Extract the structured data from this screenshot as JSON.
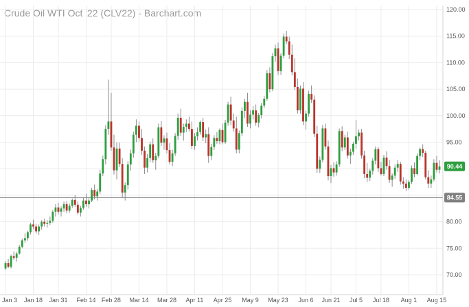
{
  "chart_data": {
    "type": "candlestick",
    "title": "Crude Oil WTI Oct '22 (CLV22) - Barchart.com",
    "y_axis_side": "right",
    "ylim": [
      70,
      120
    ],
    "yticks": [
      "70.00",
      "75.00",
      "80.00",
      "85.00",
      "90.00",
      "95.00",
      "100.00",
      "105.00",
      "110.00",
      "115.00",
      "120.00"
    ],
    "xticks": [
      {
        "label": "Jan 3",
        "index": 0
      },
      {
        "label": "Jan 18",
        "index": 10
      },
      {
        "label": "Jan 31",
        "index": 19
      },
      {
        "label": "Feb 14",
        "index": 29
      },
      {
        "label": "Feb 28",
        "index": 38
      },
      {
        "label": "Mar 14",
        "index": 48
      },
      {
        "label": "Mar 28",
        "index": 58
      },
      {
        "label": "Apr 11",
        "index": 68
      },
      {
        "label": "Apr 25",
        "index": 78
      },
      {
        "label": "May 9",
        "index": 88
      },
      {
        "label": "May 23",
        "index": 98
      },
      {
        "label": "Jun 6",
        "index": 108
      },
      {
        "label": "Jun 21",
        "index": 117
      },
      {
        "label": "Jul 5",
        "index": 126
      },
      {
        "label": "Jul 18",
        "index": 135
      },
      {
        "label": "Aug 1",
        "index": 145
      },
      {
        "label": "Aug 15",
        "index": 155
      }
    ],
    "last_price": {
      "label": "90.44",
      "value": 90.44,
      "color": "#2e9e3f"
    },
    "reference_line": {
      "label": "84.55",
      "value": 84.55,
      "color": "#808080"
    },
    "up_color": "#2e9e3f",
    "down_color": "#b8352b",
    "wick_color": "#8a8a8a",
    "ohlc": [
      [
        71.2,
        72.6,
        70.9,
        72.2
      ],
      [
        72.2,
        73.0,
        71.3,
        71.5
      ],
      [
        71.5,
        73.8,
        71.2,
        73.5
      ],
      [
        73.5,
        74.4,
        72.8,
        73.2
      ],
      [
        73.2,
        74.3,
        72.5,
        74.0
      ],
      [
        74.0,
        75.6,
        73.8,
        75.3
      ],
      [
        75.3,
        76.8,
        75.0,
        76.5
      ],
      [
        76.5,
        77.8,
        76.0,
        76.9
      ],
      [
        76.9,
        78.3,
        76.4,
        78.0
      ],
      [
        78.0,
        79.8,
        77.6,
        79.5
      ],
      [
        79.5,
        80.4,
        78.6,
        79.1
      ],
      [
        79.1,
        79.6,
        77.8,
        78.2
      ],
      [
        78.2,
        79.5,
        77.5,
        79.1
      ],
      [
        79.1,
        80.3,
        78.5,
        80.0
      ],
      [
        80.0,
        80.6,
        79.1,
        79.6
      ],
      [
        79.6,
        80.3,
        78.9,
        79.8
      ],
      [
        79.8,
        81.0,
        79.4,
        80.2
      ],
      [
        80.2,
        82.2,
        79.8,
        81.9
      ],
      [
        81.9,
        83.3,
        81.0,
        82.7
      ],
      [
        82.7,
        83.6,
        81.4,
        81.9
      ],
      [
        81.9,
        82.9,
        81.0,
        82.5
      ],
      [
        82.5,
        83.8,
        81.9,
        83.3
      ],
      [
        83.3,
        83.9,
        81.6,
        82.1
      ],
      [
        82.1,
        83.4,
        81.7,
        83.0
      ],
      [
        83.0,
        84.4,
        82.6,
        84.1
      ],
      [
        84.1,
        85.0,
        82.8,
        83.2
      ],
      [
        83.2,
        83.8,
        81.3,
        81.7
      ],
      [
        81.7,
        83.0,
        81.0,
        82.6
      ],
      [
        82.6,
        84.6,
        82.3,
        84.0
      ],
      [
        84.0,
        85.3,
        82.8,
        83.3
      ],
      [
        83.3,
        84.5,
        82.5,
        84.0
      ],
      [
        84.0,
        86.4,
        83.7,
        86.0
      ],
      [
        86.0,
        87.0,
        84.2,
        84.8
      ],
      [
        84.8,
        86.2,
        84.0,
        85.7
      ],
      [
        85.7,
        89.8,
        85.2,
        89.1
      ],
      [
        89.1,
        92.5,
        88.6,
        91.8
      ],
      [
        91.8,
        98.2,
        90.8,
        97.5
      ],
      [
        97.5,
        106.8,
        96.4,
        98.9
      ],
      [
        98.9,
        104.3,
        93.4,
        94.0
      ],
      [
        94.0,
        96.4,
        88.9,
        89.7
      ],
      [
        89.7,
        95.0,
        88.0,
        93.8
      ],
      [
        93.8,
        94.9,
        90.3,
        90.9
      ],
      [
        90.9,
        92.0,
        84.5,
        85.5
      ],
      [
        85.5,
        87.4,
        84.0,
        86.9
      ],
      [
        86.9,
        91.4,
        86.1,
        90.8
      ],
      [
        90.8,
        93.6,
        89.6,
        92.9
      ],
      [
        92.9,
        97.0,
        92.1,
        96.4
      ],
      [
        96.4,
        99.3,
        95.0,
        98.1
      ],
      [
        98.1,
        98.9,
        95.1,
        95.8
      ],
      [
        95.8,
        97.5,
        92.6,
        93.4
      ],
      [
        93.4,
        94.2,
        89.0,
        90.2
      ],
      [
        90.2,
        92.8,
        89.3,
        92.0
      ],
      [
        92.0,
        95.1,
        91.2,
        94.6
      ],
      [
        94.6,
        95.7,
        91.1,
        91.6
      ],
      [
        91.6,
        93.0,
        89.8,
        92.4
      ],
      [
        92.4,
        98.5,
        92.0,
        97.8
      ],
      [
        97.8,
        99.0,
        94.3,
        94.9
      ],
      [
        94.9,
        96.3,
        93.6,
        95.7
      ],
      [
        95.7,
        96.8,
        92.9,
        93.5
      ],
      [
        93.5,
        94.8,
        90.8,
        91.3
      ],
      [
        91.3,
        93.6,
        90.5,
        92.9
      ],
      [
        92.9,
        96.7,
        92.4,
        96.2
      ],
      [
        96.2,
        100.4,
        95.4,
        99.6
      ],
      [
        99.6,
        101.3,
        96.2,
        96.8
      ],
      [
        96.8,
        98.5,
        95.3,
        97.9
      ],
      [
        97.9,
        99.3,
        96.9,
        98.5
      ],
      [
        98.5,
        99.8,
        97.0,
        97.5
      ],
      [
        97.5,
        98.9,
        93.7,
        94.3
      ],
      [
        94.3,
        96.7,
        93.6,
        96.1
      ],
      [
        96.1,
        97.8,
        95.3,
        96.9
      ],
      [
        96.9,
        99.1,
        96.4,
        98.8
      ],
      [
        98.8,
        99.6,
        95.2,
        95.9
      ],
      [
        95.9,
        97.4,
        94.8,
        96.5
      ],
      [
        96.5,
        97.8,
        91.1,
        92.4
      ],
      [
        92.4,
        94.7,
        91.6,
        94.1
      ],
      [
        94.1,
        96.3,
        93.5,
        95.8
      ],
      [
        95.8,
        96.9,
        94.7,
        95.2
      ],
      [
        95.2,
        97.6,
        94.6,
        97.3
      ],
      [
        97.3,
        98.5,
        94.6,
        95.0
      ],
      [
        95.0,
        99.2,
        94.7,
        98.7
      ],
      [
        98.7,
        102.6,
        98.1,
        102.1
      ],
      [
        102.1,
        103.6,
        98.2,
        99.1
      ],
      [
        99.1,
        100.4,
        97.0,
        97.6
      ],
      [
        97.6,
        99.8,
        92.9,
        93.6
      ],
      [
        93.6,
        97.2,
        92.9,
        96.7
      ],
      [
        96.7,
        101.6,
        96.1,
        100.9
      ],
      [
        100.9,
        103.2,
        99.6,
        102.6
      ],
      [
        102.6,
        104.3,
        97.9,
        98.5
      ],
      [
        98.5,
        101.0,
        97.6,
        100.2
      ],
      [
        100.2,
        101.8,
        99.3,
        101.0
      ],
      [
        101.0,
        102.1,
        98.1,
        98.7
      ],
      [
        98.7,
        100.5,
        97.8,
        100.1
      ],
      [
        100.1,
        102.4,
        99.5,
        101.9
      ],
      [
        101.9,
        103.7,
        101.4,
        103.2
      ],
      [
        103.2,
        108.6,
        102.8,
        108.0
      ],
      [
        108.0,
        109.1,
        104.4,
        105.0
      ],
      [
        105.0,
        111.8,
        104.6,
        111.2
      ],
      [
        111.2,
        113.4,
        110.2,
        112.7
      ],
      [
        112.7,
        113.8,
        107.7,
        108.4
      ],
      [
        108.4,
        111.8,
        107.7,
        111.3
      ],
      [
        111.3,
        115.5,
        110.8,
        114.9
      ],
      [
        114.9,
        116.0,
        113.5,
        114.0
      ],
      [
        114.0,
        114.9,
        110.7,
        111.5
      ],
      [
        111.5,
        113.4,
        107.6,
        108.2
      ],
      [
        108.2,
        110.8,
        104.8,
        105.4
      ],
      [
        105.4,
        107.0,
        100.4,
        101.0
      ],
      [
        101.0,
        105.7,
        100.4,
        105.1
      ],
      [
        105.1,
        106.3,
        98.2,
        98.9
      ],
      [
        98.9,
        100.9,
        97.4,
        100.4
      ],
      [
        100.4,
        104.7,
        99.8,
        104.1
      ],
      [
        104.1,
        105.7,
        102.4,
        103.0
      ],
      [
        103.0,
        103.8,
        96.0,
        96.6
      ],
      [
        96.6,
        98.1,
        89.2,
        90.0
      ],
      [
        90.0,
        92.3,
        89.2,
        91.7
      ],
      [
        91.7,
        98.2,
        91.2,
        97.6
      ],
      [
        97.6,
        98.5,
        93.6,
        94.2
      ],
      [
        94.2,
        95.3,
        87.8,
        88.6
      ],
      [
        88.6,
        90.7,
        87.3,
        90.1
      ],
      [
        90.1,
        91.2,
        88.5,
        89.3
      ],
      [
        89.3,
        91.4,
        88.7,
        90.8
      ],
      [
        90.8,
        97.6,
        90.3,
        97.1
      ],
      [
        97.1,
        98.0,
        93.3,
        94.0
      ],
      [
        94.0,
        96.4,
        93.5,
        95.9
      ],
      [
        95.9,
        97.0,
        91.9,
        92.5
      ],
      [
        92.5,
        93.8,
        90.9,
        93.2
      ],
      [
        93.2,
        95.1,
        92.6,
        94.7
      ],
      [
        94.7,
        99.2,
        93.8,
        96.1
      ],
      [
        96.1,
        97.4,
        95.3,
        96.8
      ],
      [
        96.8,
        97.5,
        91.9,
        92.5
      ],
      [
        92.5,
        93.4,
        88.2,
        89.0
      ],
      [
        89.0,
        91.1,
        87.5,
        88.3
      ],
      [
        88.3,
        90.0,
        87.7,
        89.6
      ],
      [
        89.6,
        92.0,
        88.9,
        91.5
      ],
      [
        91.5,
        94.2,
        90.8,
        93.7
      ],
      [
        93.7,
        94.1,
        89.4,
        90.1
      ],
      [
        90.1,
        91.3,
        88.7,
        89.0
      ],
      [
        89.0,
        92.6,
        88.6,
        92.1
      ],
      [
        92.1,
        93.3,
        89.8,
        90.5
      ],
      [
        90.5,
        91.6,
        87.3,
        87.9
      ],
      [
        87.9,
        89.1,
        86.6,
        88.7
      ],
      [
        88.7,
        90.8,
        88.1,
        90.2
      ],
      [
        90.2,
        91.7,
        89.4,
        90.9
      ],
      [
        90.9,
        91.3,
        87.0,
        87.6
      ],
      [
        87.6,
        88.4,
        86.2,
        87.2
      ],
      [
        87.2,
        88.0,
        85.8,
        86.4
      ],
      [
        86.4,
        87.9,
        86.0,
        87.5
      ],
      [
        87.5,
        90.6,
        87.1,
        90.1
      ],
      [
        90.1,
        91.2,
        88.4,
        89.0
      ],
      [
        89.0,
        92.9,
        88.8,
        92.4
      ],
      [
        92.4,
        94.0,
        91.6,
        93.7
      ],
      [
        93.7,
        94.6,
        92.2,
        93.0
      ],
      [
        93.0,
        93.4,
        88.0,
        88.4
      ],
      [
        88.4,
        89.7,
        86.4,
        87.2
      ],
      [
        87.2,
        88.7,
        86.4,
        88.0
      ],
      [
        88.0,
        91.8,
        87.6,
        91.1
      ],
      [
        91.1,
        92.4,
        89.3,
        89.8
      ],
      [
        89.8,
        91.6,
        89.1,
        90.44
      ]
    ]
  }
}
